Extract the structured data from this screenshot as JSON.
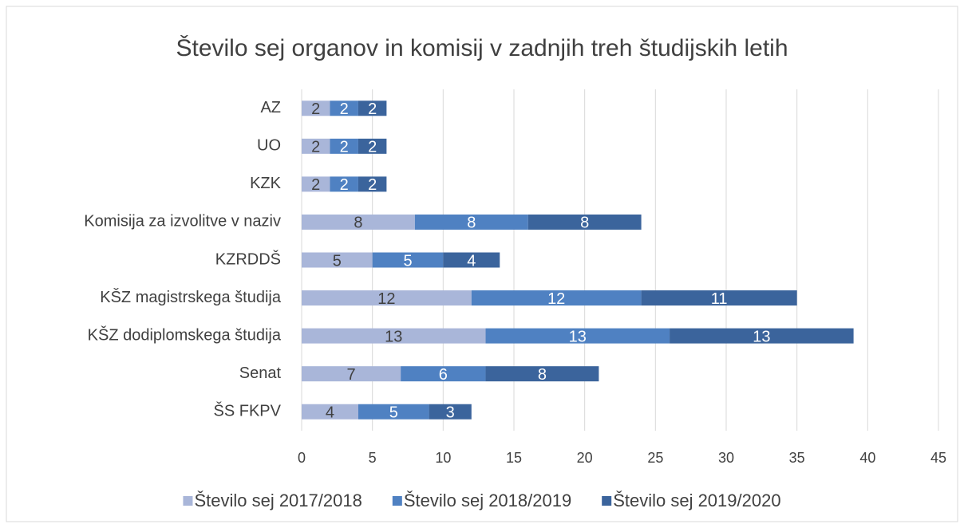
{
  "chart_data": {
    "type": "bar",
    "orientation": "horizontal",
    "stacked": true,
    "title": "Število sej organov in komisij v zadnjih treh študijskih letih",
    "categories": [
      "AZ",
      "UO",
      "KZK",
      "Komisija za izvolitve v naziv",
      "KZRDDŠ",
      "KŠZ magistrskega študija",
      "KŠZ dodiplomskega študija",
      "Senat",
      "ŠS FKPV"
    ],
    "series": [
      {
        "name": "Število sej 2017/2018",
        "color": "#a9b6d9",
        "label_color": "#404040",
        "values": [
          2,
          2,
          2,
          8,
          5,
          12,
          13,
          7,
          4
        ]
      },
      {
        "name": "Število sej 2018/2019",
        "color": "#4f81c2",
        "label_color": "#ffffff",
        "values": [
          2,
          2,
          2,
          8,
          5,
          12,
          13,
          6,
          5
        ]
      },
      {
        "name": "Število sej 2019/2020",
        "color": "#3b649c",
        "label_color": "#ffffff",
        "values": [
          2,
          2,
          2,
          8,
          4,
          11,
          13,
          8,
          3
        ]
      }
    ],
    "xlim": [
      0,
      45
    ],
    "xticks": [
      0,
      5,
      10,
      15,
      20,
      25,
      30,
      35,
      40,
      45
    ],
    "grid": true,
    "legend": "bottom"
  }
}
